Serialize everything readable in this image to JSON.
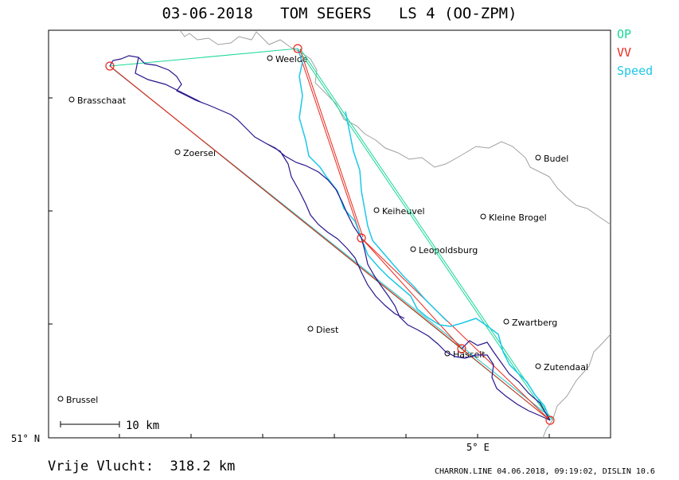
{
  "header": {
    "title": "03-06-2018   TOM SEGERS   LS 4 (OO-ZPM)"
  },
  "legend": [
    {
      "label": "OP",
      "color": "#18d898"
    },
    {
      "label": "VV",
      "color": "#e8281c"
    },
    {
      "label": "Speed",
      "color": "#1cc8e8"
    }
  ],
  "axes": {
    "y_label": "51° N",
    "x_label": "5° E"
  },
  "scale_bar": {
    "label": "10 km"
  },
  "places": [
    {
      "name": "Weelde",
      "pos": [
        339,
        73
      ]
    },
    {
      "name": "Brasschaat",
      "pos": [
        90,
        125
      ]
    },
    {
      "name": "Zoersel",
      "pos": [
        223,
        191
      ]
    },
    {
      "name": "Budel",
      "pos": [
        676,
        198
      ]
    },
    {
      "name": "Keiheuvel",
      "pos": [
        473,
        264
      ]
    },
    {
      "name": "Kleine Brogel",
      "pos": [
        607,
        272
      ]
    },
    {
      "name": "Leopoldsburg",
      "pos": [
        519,
        313
      ]
    },
    {
      "name": "Zwartberg",
      "pos": [
        636,
        404
      ]
    },
    {
      "name": "Diest",
      "pos": [
        390,
        413
      ]
    },
    {
      "name": "Hasselt",
      "pos": [
        562,
        444
      ]
    },
    {
      "name": "Zutendaal",
      "pos": [
        676,
        460
      ]
    },
    {
      "name": "Brussel",
      "pos": [
        76,
        501
      ]
    }
  ],
  "turnpoints": [
    [
      138,
      83
    ],
    [
      374,
      61
    ],
    [
      454,
      299
    ],
    [
      691,
      528
    ],
    [
      580,
      438
    ]
  ],
  "colors": {
    "border": "#a0a0a0",
    "op": "#18d898",
    "vv": "#e8281c",
    "speed": "#1cc8e8",
    "track": "#28168c"
  },
  "summary": {
    "distance": "Vrije Vlucht:  318.2 km",
    "footer": "CHARRON.LINE 04.06.2018, 09:19:02, DISLIN 10.6"
  }
}
